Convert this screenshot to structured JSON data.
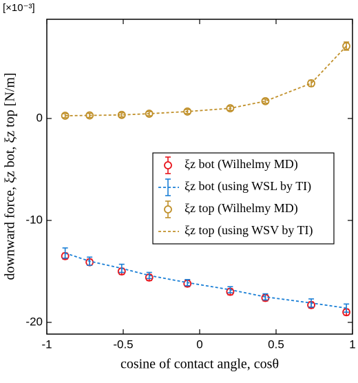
{
  "chart_data": {
    "type": "line",
    "scale_label": "[×10⁻³]",
    "xlabel": "cosine of contact angle, cosθ",
    "ylabel": "downward force, ξz bot, ξz top [N/m]",
    "x": [
      -0.88,
      -0.72,
      -0.51,
      -0.33,
      -0.08,
      0.2,
      0.43,
      0.73,
      0.96
    ],
    "xlim": [
      -1,
      1
    ],
    "xticks": [
      -1,
      -0.5,
      0,
      0.5,
      1
    ],
    "ylim": [
      -21.15,
      9.73
    ],
    "yticks": [
      -20,
      -10,
      0
    ],
    "legend": "center-right",
    "series": [
      {
        "name": "ξz bot (Wilhelmy MD)",
        "color": "#e8141c",
        "style": "marker",
        "values": [
          -13.5,
          -14.1,
          -15.0,
          -15.6,
          -16.2,
          -17.0,
          -17.6,
          -18.3,
          -19.0
        ],
        "errors": [
          0.3,
          0.3,
          0.3,
          0.3,
          0.3,
          0.3,
          0.3,
          0.3,
          0.3
        ]
      },
      {
        "name": "ξz bot (using WSL by TI)",
        "color": "#1a7fd6",
        "style": "dashed",
        "values": [
          -13.2,
          -14.0,
          -14.7,
          -15.4,
          -16.1,
          -16.8,
          -17.5,
          -18.1,
          -18.6
        ],
        "errors": [
          0.5,
          0.4,
          0.4,
          0.3,
          0.3,
          0.3,
          0.3,
          0.4,
          0.4
        ]
      },
      {
        "name": "ξz top (Wilhelmy MD)",
        "color": "#c0902a",
        "style": "marker",
        "values": [
          0.27,
          0.3,
          0.35,
          0.47,
          0.68,
          1.0,
          1.7,
          3.45,
          7.1
        ],
        "errors": [
          0.2,
          0.2,
          0.2,
          0.2,
          0.2,
          0.2,
          0.2,
          0.3,
          0.4
        ]
      },
      {
        "name": "ξz top (using WSV by TI)",
        "color": "#c0902a",
        "style": "dashed",
        "values": [
          0.27,
          0.3,
          0.35,
          0.47,
          0.68,
          1.0,
          1.7,
          3.45,
          7.1
        ]
      }
    ]
  }
}
